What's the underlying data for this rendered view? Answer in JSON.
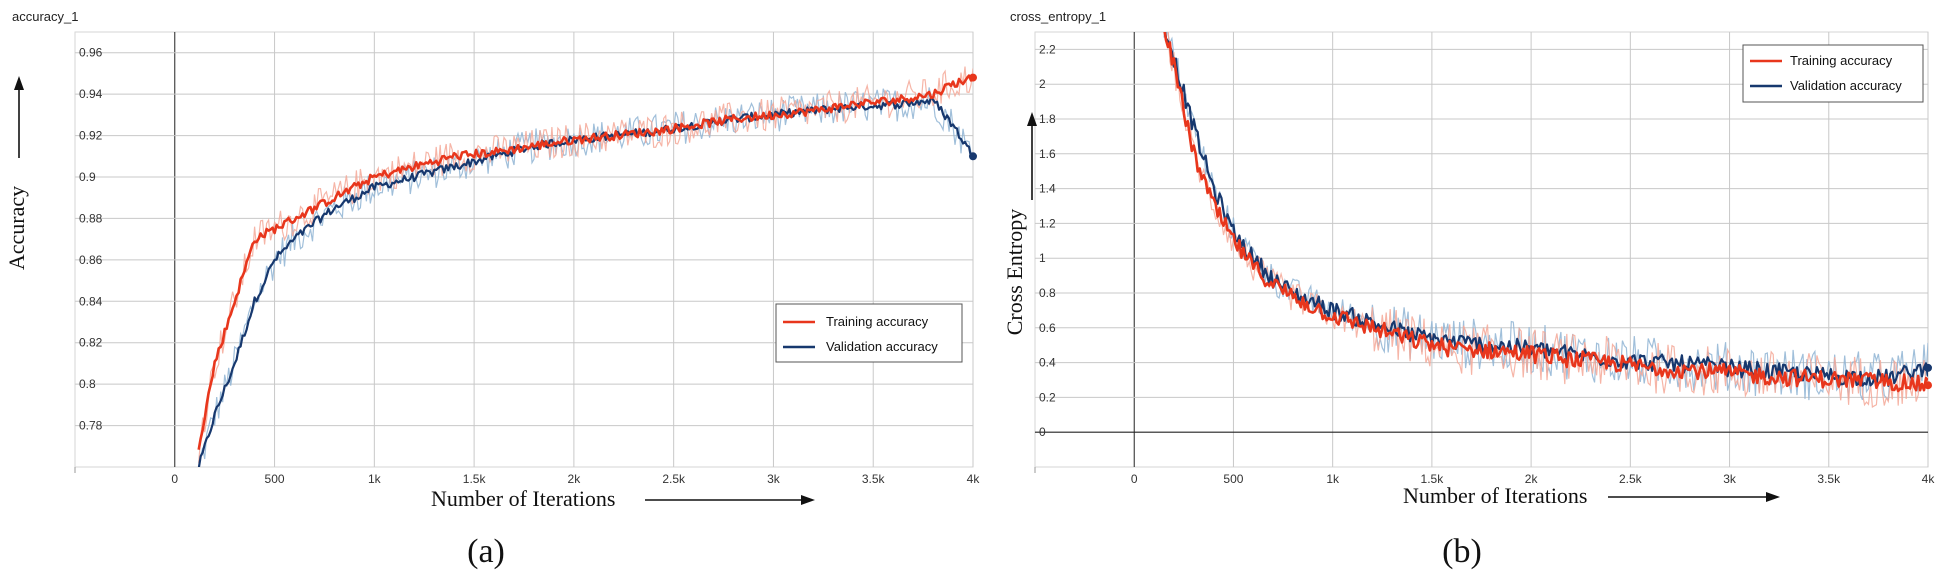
{
  "chart_data": [
    {
      "type": "line",
      "title": "accuracy_1",
      "xlabel": "Number of Iterations",
      "ylabel": "Accuracy",
      "caption": "(a)",
      "xlim": [
        -500,
        4000
      ],
      "ylim": [
        0.76,
        0.97
      ],
      "xticks": [
        0,
        500,
        1000,
        1500,
        2000,
        2500,
        3000,
        3500,
        4000
      ],
      "xtick_labels": [
        "0",
        "500",
        "1k",
        "1.5k",
        "2k",
        "2.5k",
        "3k",
        "3.5k",
        "4k"
      ],
      "yticks": [
        0.78,
        0.8,
        0.82,
        0.84,
        0.86,
        0.88,
        0.9,
        0.92,
        0.94,
        0.96
      ],
      "ytick_labels": [
        "0.78",
        "0.8",
        "0.82",
        "0.84",
        "0.86",
        "0.88",
        "0.9",
        "0.92",
        "0.94",
        "0.96"
      ],
      "grid": true,
      "legend": "center-right",
      "series": [
        {
          "name": "Training accuracy",
          "color": "#e8361c",
          "x": [
            120,
            200,
            300,
            400,
            500,
            600,
            700,
            800,
            900,
            1000,
            1200,
            1400,
            1600,
            1800,
            2000,
            2200,
            2400,
            2600,
            2800,
            3000,
            3200,
            3400,
            3600,
            3800,
            3900,
            4000
          ],
          "y": [
            0.77,
            0.81,
            0.84,
            0.87,
            0.875,
            0.88,
            0.885,
            0.89,
            0.895,
            0.9,
            0.905,
            0.91,
            0.912,
            0.915,
            0.918,
            0.92,
            0.922,
            0.925,
            0.928,
            0.93,
            0.932,
            0.935,
            0.937,
            0.94,
            0.945,
            0.948
          ]
        },
        {
          "name": "Validation accuracy",
          "color": "#17386e",
          "x": [
            120,
            200,
            300,
            400,
            500,
            600,
            700,
            800,
            900,
            1000,
            1200,
            1400,
            1600,
            1800,
            2000,
            2200,
            2400,
            2600,
            2800,
            3000,
            3200,
            3400,
            3600,
            3800,
            3900,
            4000
          ],
          "y": [
            0.76,
            0.785,
            0.81,
            0.84,
            0.86,
            0.87,
            0.878,
            0.885,
            0.89,
            0.895,
            0.9,
            0.905,
            0.91,
            0.915,
            0.918,
            0.92,
            0.922,
            0.925,
            0.928,
            0.93,
            0.932,
            0.934,
            0.935,
            0.937,
            0.925,
            0.91
          ]
        }
      ]
    },
    {
      "type": "line",
      "title": "cross_entropy_1",
      "xlabel": "Number of Iterations",
      "ylabel": "Cross Entropy",
      "caption": "(b)",
      "xlim": [
        -500,
        4000
      ],
      "ylim": [
        -0.2,
        2.3
      ],
      "xticks": [
        0,
        500,
        1000,
        1500,
        2000,
        2500,
        3000,
        3500,
        4000
      ],
      "xtick_labels": [
        "0",
        "500",
        "1k",
        "1.5k",
        "2k",
        "2.5k",
        "3k",
        "3.5k",
        "4k"
      ],
      "yticks": [
        0,
        0.2,
        0.4,
        0.6,
        0.8,
        1,
        1.2,
        1.4,
        1.6,
        1.8,
        2,
        2.2
      ],
      "ytick_labels": [
        "0",
        "0.2",
        "0.4",
        "0.6",
        "0.8",
        "1",
        "1.2",
        "1.4",
        "1.6",
        "1.8",
        "2",
        "2.2"
      ],
      "grid": true,
      "legend": "top-right",
      "series": [
        {
          "name": "Training accuracy",
          "color": "#e8361c",
          "x": [
            150,
            200,
            250,
            300,
            400,
            500,
            600,
            700,
            800,
            900,
            1000,
            1200,
            1400,
            1600,
            1800,
            2000,
            2200,
            2400,
            2600,
            2800,
            3000,
            3200,
            3400,
            3600,
            3800,
            4000
          ],
          "y": [
            2.35,
            2.1,
            1.85,
            1.6,
            1.3,
            1.1,
            0.95,
            0.85,
            0.78,
            0.72,
            0.67,
            0.6,
            0.53,
            0.48,
            0.47,
            0.45,
            0.42,
            0.4,
            0.37,
            0.36,
            0.34,
            0.32,
            0.31,
            0.3,
            0.29,
            0.27
          ]
        },
        {
          "name": "Validation accuracy",
          "color": "#17386e",
          "x": [
            150,
            200,
            250,
            300,
            400,
            500,
            600,
            700,
            800,
            900,
            1000,
            1200,
            1400,
            1600,
            1800,
            2000,
            2200,
            2400,
            2600,
            2800,
            3000,
            3200,
            3400,
            3600,
            3800,
            4000
          ],
          "y": [
            2.35,
            2.15,
            1.95,
            1.75,
            1.4,
            1.15,
            1.0,
            0.88,
            0.8,
            0.75,
            0.7,
            0.63,
            0.56,
            0.52,
            0.5,
            0.48,
            0.45,
            0.42,
            0.4,
            0.39,
            0.37,
            0.35,
            0.33,
            0.32,
            0.31,
            0.37
          ]
        }
      ]
    }
  ]
}
